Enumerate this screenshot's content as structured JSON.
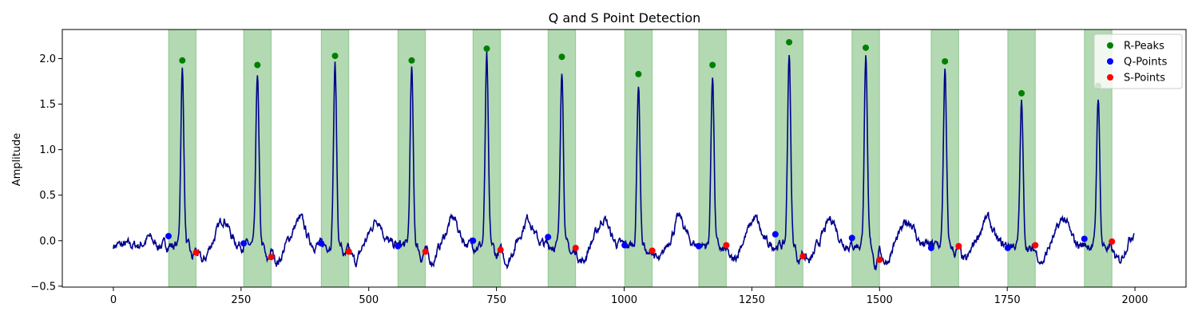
{
  "chart_data": {
    "type": "line",
    "title": "Q and S Point Detection",
    "xlabel": "",
    "ylabel": "Amplitude",
    "xlim": [
      -100,
      2100
    ],
    "ylim": [
      -0.51,
      2.32
    ],
    "x_ticks": [
      0,
      250,
      500,
      750,
      1000,
      1250,
      1500,
      1750,
      2000
    ],
    "y_ticks": [
      -0.5,
      0.0,
      0.5,
      1.0,
      1.5,
      2.0
    ],
    "x_tick_labels": [
      "0",
      "250",
      "500",
      "750",
      "1000",
      "1250",
      "1500",
      "1750",
      "2000"
    ],
    "y_tick_labels": [
      "−0.5",
      "0.0",
      "0.5",
      "1.0",
      "1.5",
      "2.0"
    ],
    "grid": false,
    "legend_position": "top-right",
    "colors": {
      "signal": "#00008b",
      "r_peaks": "#008000",
      "q_points": "#0000ff",
      "s_points": "#ff0000",
      "qrs_band": "#008000"
    },
    "r_peaks": {
      "name": "R-Peaks",
      "x": [
        135,
        282,
        434,
        584,
        731,
        878,
        1028,
        1173,
        1323,
        1473,
        1628,
        1778,
        1928
      ],
      "y": [
        1.98,
        1.93,
        2.03,
        1.98,
        2.11,
        2.02,
        1.83,
        1.93,
        2.18,
        2.12,
        1.97,
        1.62,
        1.7
      ]
    },
    "q_points": {
      "name": "Q-Points",
      "x": [
        108,
        255,
        407,
        557,
        704,
        851,
        1001,
        1146,
        1296,
        1446,
        1601,
        1751,
        1901
      ],
      "y": [
        0.05,
        -0.03,
        -0.03,
        -0.06,
        0.0,
        0.04,
        -0.05,
        -0.06,
        0.07,
        0.03,
        -0.08,
        -0.08,
        0.02
      ]
    },
    "s_points": {
      "name": "S-Points",
      "x": [
        162,
        309,
        461,
        611,
        758,
        905,
        1055,
        1200,
        1350,
        1500,
        1655,
        1805,
        1955
      ],
      "y": [
        -0.13,
        -0.18,
        -0.12,
        -0.12,
        -0.1,
        -0.08,
        -0.11,
        -0.05,
        -0.17,
        -0.21,
        -0.06,
        -0.05,
        -0.01
      ]
    },
    "qrs_intervals": [
      [
        108,
        162
      ],
      [
        255,
        309
      ],
      [
        407,
        461
      ],
      [
        557,
        611
      ],
      [
        704,
        758
      ],
      [
        851,
        905
      ],
      [
        1001,
        1055
      ],
      [
        1146,
        1200
      ],
      [
        1296,
        1350
      ],
      [
        1446,
        1500
      ],
      [
        1601,
        1655
      ],
      [
        1751,
        1805
      ],
      [
        1901,
        1955
      ]
    ]
  }
}
